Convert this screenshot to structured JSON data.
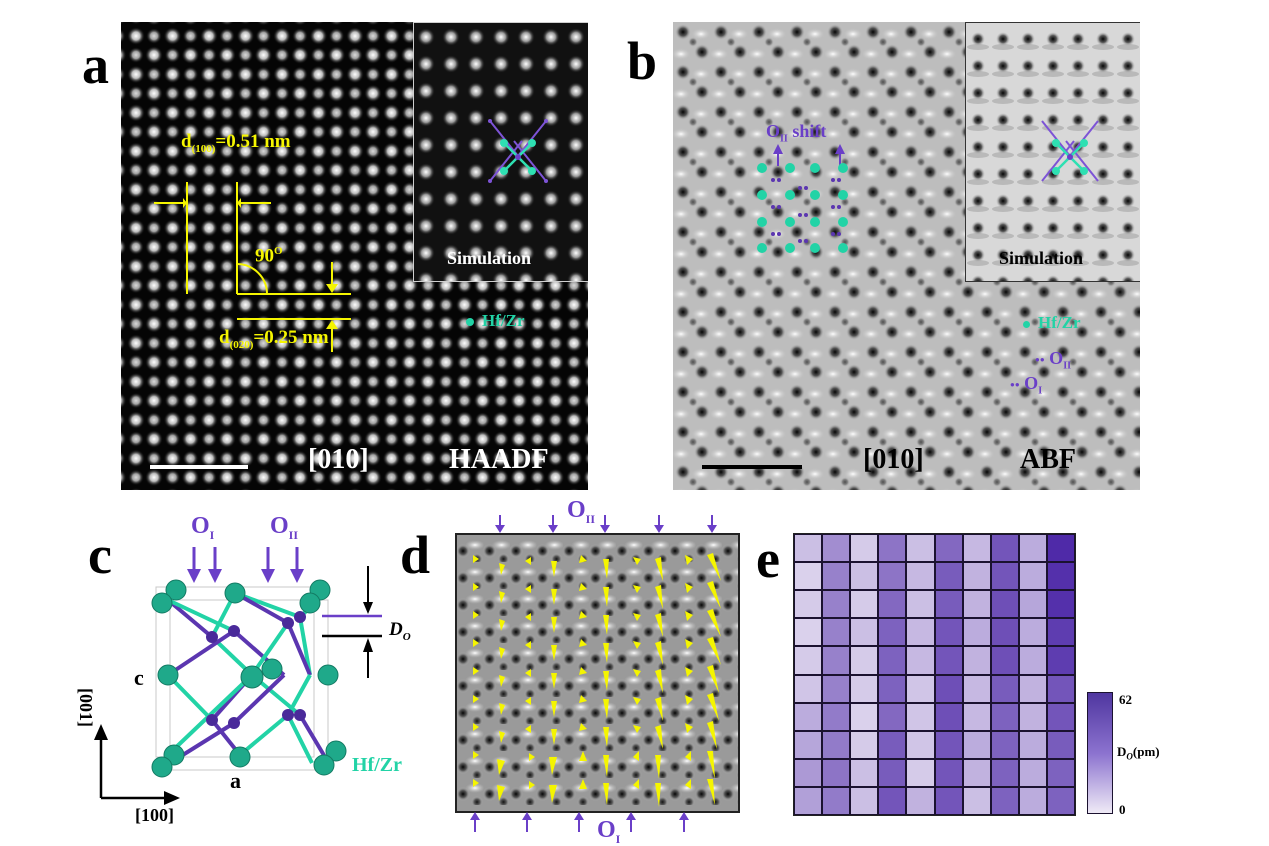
{
  "figure": {
    "panels": {
      "a": {
        "letter": "a",
        "mode": "HAADF",
        "zone_axis": "[010]",
        "d100_label": "d",
        "d100_sub": "(100)",
        "d100_value": "=0.51 nm",
        "d020_label": "d",
        "d020_sub": "(020)",
        "d020_value": "=0.25 nm",
        "angle_label": "90",
        "angle_sup": "O",
        "inset_label": "Simulation",
        "legend_hfzr": "Hf/Zr"
      },
      "b": {
        "letter": "b",
        "mode": "ABF",
        "zone_axis": "[010]",
        "shift_label_main": "O",
        "shift_label_sub": "II",
        "shift_label_text": "shift",
        "inset_label": "Simulation",
        "legend_hfzr": "Hf/Zr",
        "legend_oii_main": "O",
        "legend_oii_sub": "II",
        "legend_oi_main": "O",
        "legend_oi_sub": "I"
      },
      "c": {
        "letter": "c",
        "oi_main": "O",
        "oi_sub": "I",
        "oii_main": "O",
        "oii_sub": "II",
        "do_main": "D",
        "do_sub": "O",
        "axis_c": "c",
        "axis_a": "a",
        "dir_vertical": "[001]",
        "dir_horizontal": "[100]",
        "legend_hfzr": "Hf/Zr"
      },
      "d": {
        "letter": "d",
        "top_main": "O",
        "top_sub": "II",
        "bottom_main": "O",
        "bottom_sub": "I"
      },
      "e": {
        "letter": "e",
        "colorbar_max": "62",
        "colorbar_min": "0",
        "colorbar_label_main": "D",
        "colorbar_label_sub": "O",
        "colorbar_label_unit": "(pm)"
      }
    },
    "colors": {
      "hfzr": "#22d3a6",
      "oxygen": "#6a3fc8",
      "annotation_yellow": "#f5f500",
      "heat_low": "#efeaf6",
      "heat_high": "#4f2aa8"
    }
  },
  "chart_data": {
    "type": "heatmap",
    "title": "",
    "xlabel": "",
    "ylabel": "",
    "colorbar_label": "D_O (pm)",
    "zlim": [
      0,
      62
    ],
    "rows": 10,
    "cols": 10,
    "values": [
      [
        14,
        30,
        10,
        38,
        14,
        42,
        16,
        48,
        20,
        62
      ],
      [
        8,
        34,
        14,
        38,
        16,
        46,
        18,
        48,
        20,
        60
      ],
      [
        10,
        34,
        10,
        42,
        14,
        46,
        18,
        50,
        22,
        60
      ],
      [
        8,
        34,
        14,
        44,
        16,
        48,
        20,
        50,
        20,
        56
      ],
      [
        10,
        34,
        10,
        44,
        16,
        48,
        18,
        50,
        20,
        56
      ],
      [
        12,
        34,
        10,
        44,
        12,
        50,
        16,
        46,
        18,
        48
      ],
      [
        20,
        36,
        8,
        42,
        12,
        50,
        16,
        44,
        18,
        48
      ],
      [
        22,
        36,
        10,
        46,
        12,
        48,
        20,
        44,
        20,
        46
      ],
      [
        26,
        38,
        14,
        46,
        10,
        48,
        18,
        44,
        20,
        44
      ],
      [
        24,
        36,
        14,
        48,
        18,
        48,
        14,
        44,
        20,
        44
      ]
    ]
  }
}
